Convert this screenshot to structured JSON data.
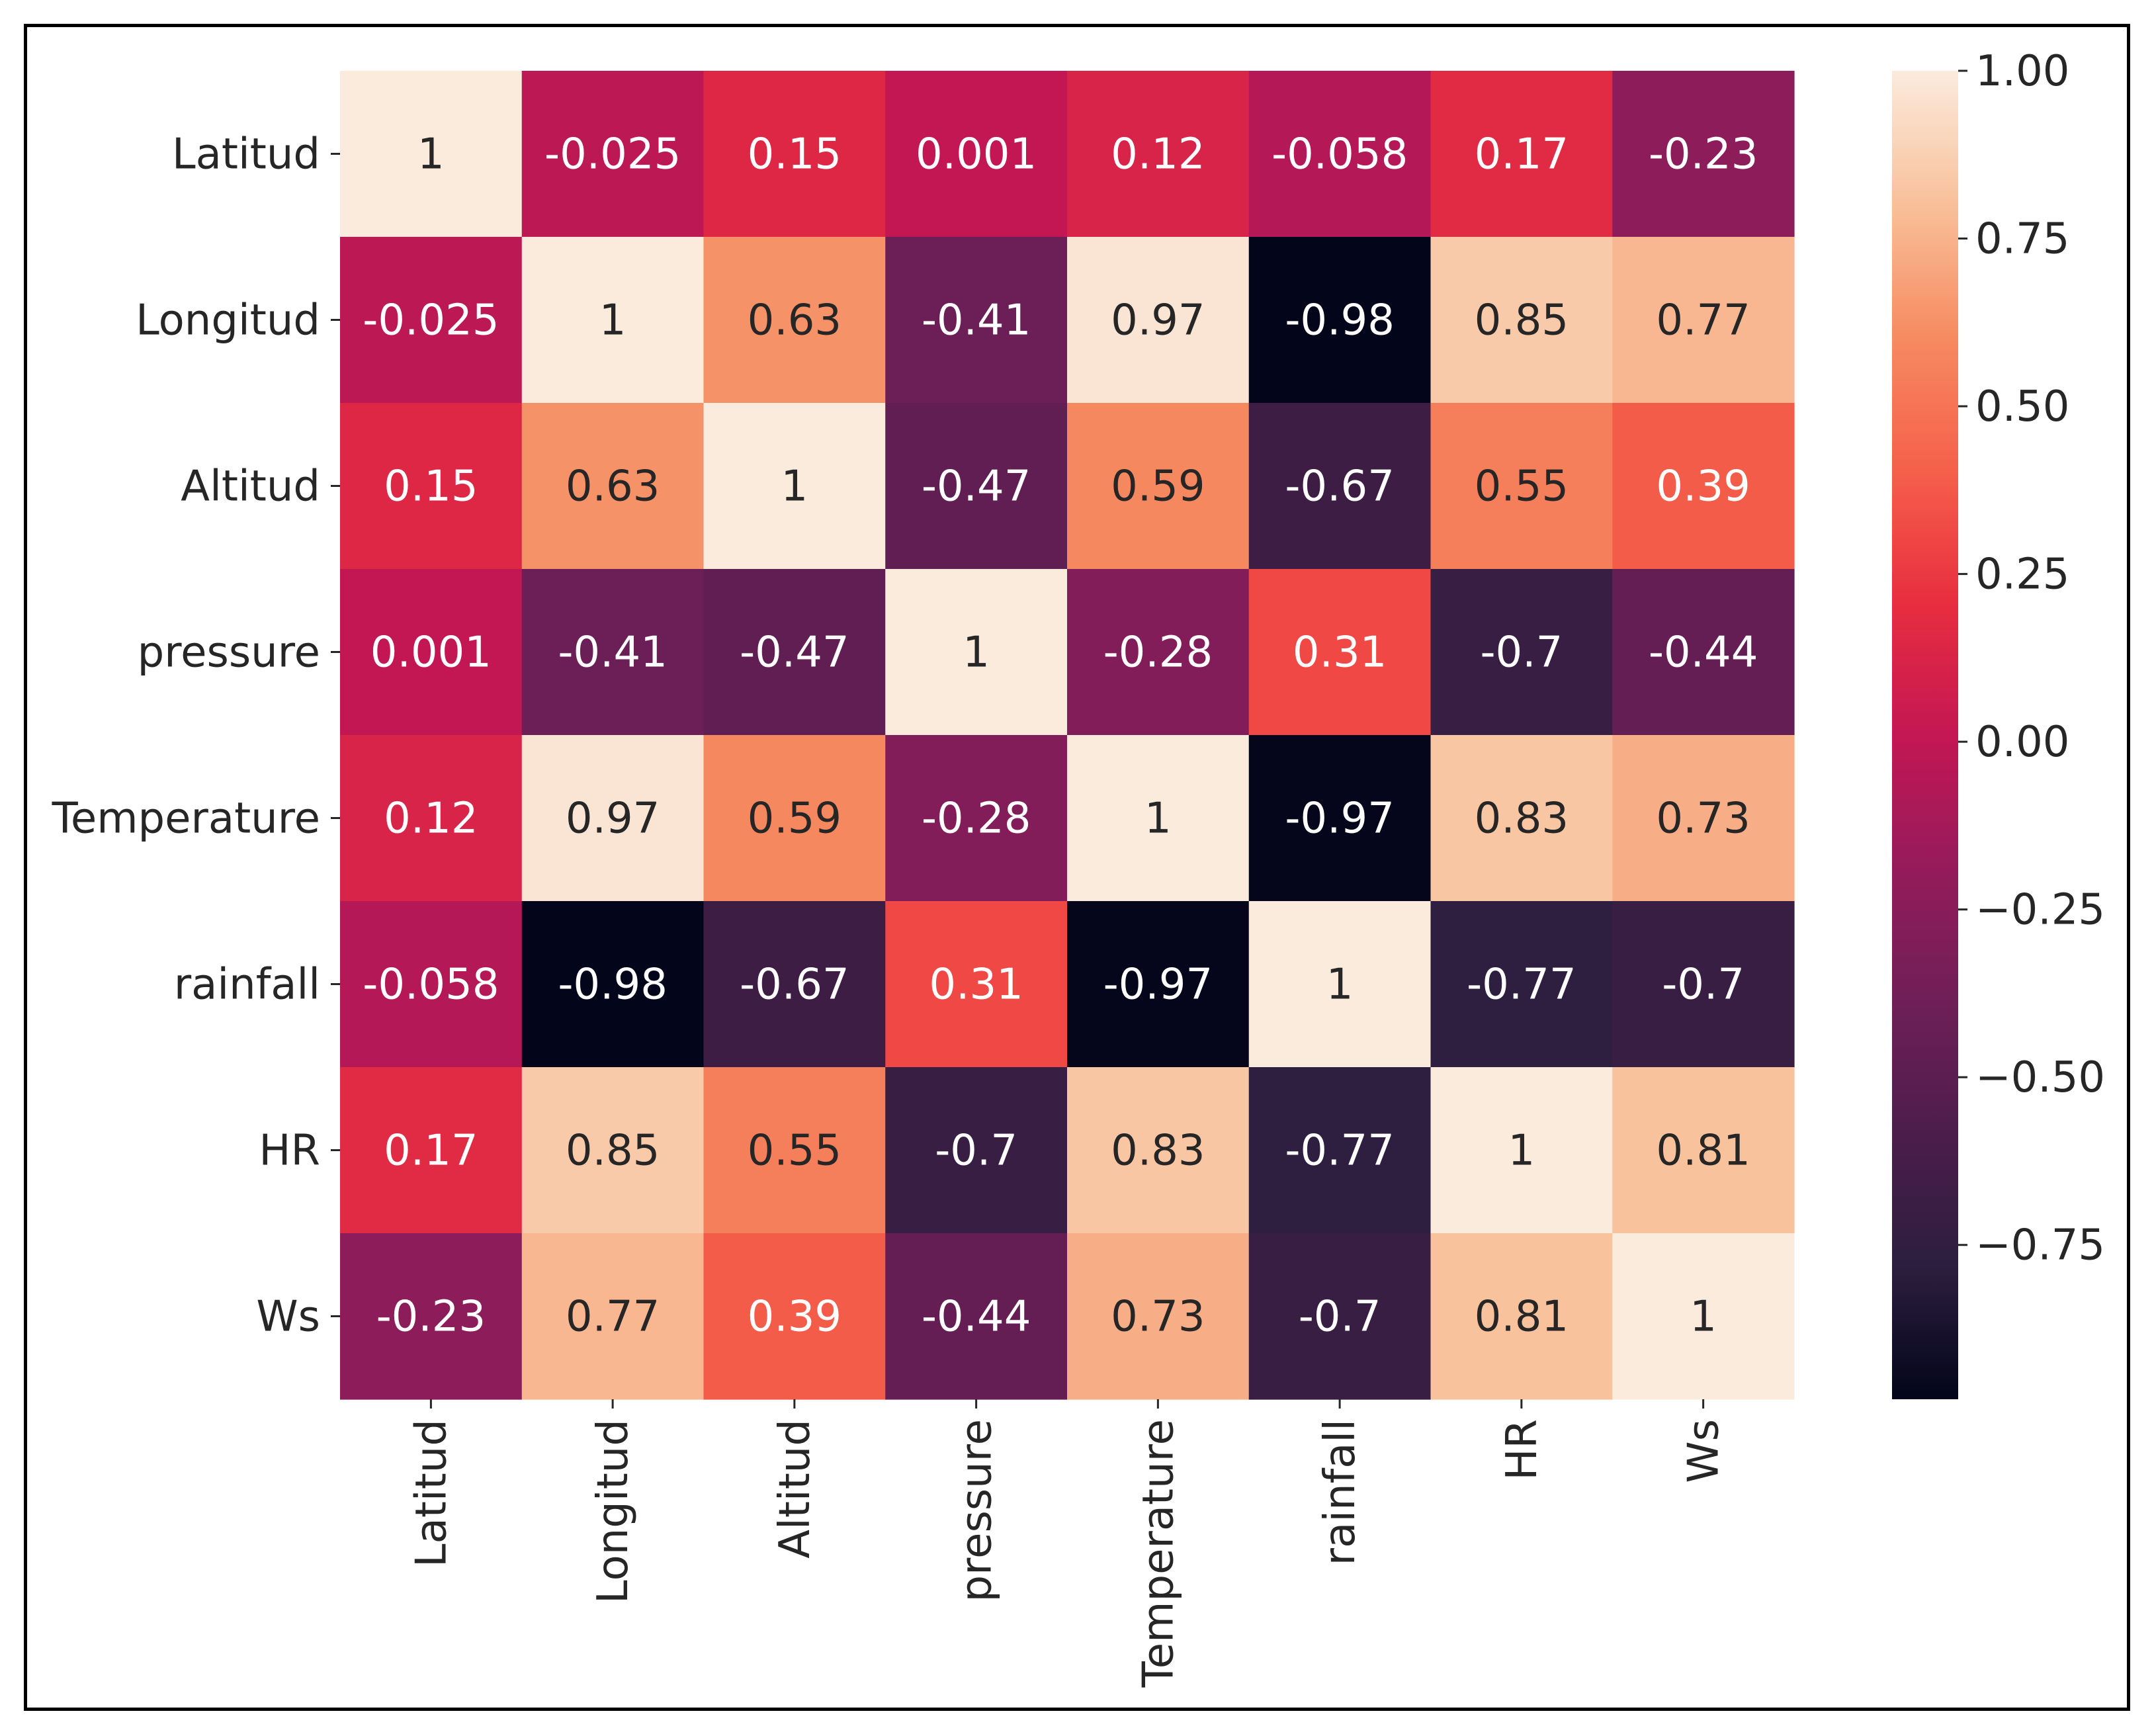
{
  "chart_data": {
    "type": "heatmap",
    "title": "",
    "xlabel": "",
    "ylabel": "",
    "row_labels": [
      "Latitud",
      "Longitud",
      "Altitud",
      "pressure",
      "Temperature",
      "rainfall",
      "HR",
      "Ws"
    ],
    "col_labels": [
      "Latitud",
      "Longitud",
      "Altitud",
      "pressure",
      "Temperature",
      "rainfall",
      "HR",
      "Ws"
    ],
    "values": [
      [
        1,
        -0.025,
        0.15,
        0.001,
        0.12,
        -0.058,
        0.17,
        -0.23
      ],
      [
        -0.025,
        1,
        0.63,
        -0.41,
        0.97,
        -0.98,
        0.85,
        0.77
      ],
      [
        0.15,
        0.63,
        1,
        -0.47,
        0.59,
        -0.67,
        0.55,
        0.39
      ],
      [
        0.001,
        -0.41,
        -0.47,
        1,
        -0.28,
        0.31,
        -0.7,
        -0.44
      ],
      [
        0.12,
        0.97,
        0.59,
        -0.28,
        1,
        -0.97,
        0.83,
        0.73
      ],
      [
        -0.058,
        -0.98,
        -0.67,
        0.31,
        -0.97,
        1,
        -0.77,
        -0.7
      ],
      [
        0.17,
        0.85,
        0.55,
        -0.7,
        0.83,
        -0.77,
        1,
        0.81
      ],
      [
        -0.23,
        0.77,
        0.39,
        -0.44,
        0.73,
        -0.7,
        0.81,
        1
      ]
    ],
    "cell_labels": [
      [
        "1",
        "-0.025",
        "0.15",
        "0.001",
        "0.12",
        "-0.058",
        "0.17",
        "-0.23"
      ],
      [
        "-0.025",
        "1",
        "0.63",
        "-0.41",
        "0.97",
        "-0.98",
        "0.85",
        "0.77"
      ],
      [
        "0.15",
        "0.63",
        "1",
        "-0.47",
        "0.59",
        "-0.67",
        "0.55",
        "0.39"
      ],
      [
        "0.001",
        "-0.41",
        "-0.47",
        "1",
        "-0.28",
        "0.31",
        "-0.7",
        "-0.44"
      ],
      [
        "0.12",
        "0.97",
        "0.59",
        "-0.28",
        "1",
        "-0.97",
        "0.83",
        "0.73"
      ],
      [
        "-0.058",
        "-0.98",
        "-0.67",
        "0.31",
        "-0.97",
        "1",
        "-0.77",
        "-0.7"
      ],
      [
        "0.17",
        "0.85",
        "0.55",
        "-0.7",
        "0.83",
        "-0.77",
        "1",
        "0.81"
      ],
      [
        "-0.23",
        "0.77",
        "0.39",
        "-0.44",
        "0.73",
        "-0.7",
        "0.81",
        "1"
      ]
    ],
    "colorbar": {
      "vmin": -0.98,
      "vmax": 1.0,
      "ticks": [
        1.0,
        0.75,
        0.5,
        0.25,
        0.0,
        -0.25,
        -0.5,
        -0.75
      ],
      "tick_labels": [
        "1.00",
        "0.75",
        "0.50",
        "0.25",
        "0.00",
        "−0.25",
        "−0.50",
        "−0.75"
      ]
    },
    "colormap": {
      "name": "rocket",
      "stops": [
        {
          "v": 0.0,
          "color": "#03051a"
        },
        {
          "v": 0.1,
          "color": "#2c1e3e"
        },
        {
          "v": 0.2,
          "color": "#4c1d4b"
        },
        {
          "v": 0.3,
          "color": "#6f1f57"
        },
        {
          "v": 0.4,
          "color": "#951b5b"
        },
        {
          "v": 0.5,
          "color": "#c41753"
        },
        {
          "v": 0.6,
          "color": "#e82e3f"
        },
        {
          "v": 0.7,
          "color": "#f5604b"
        },
        {
          "v": 0.8,
          "color": "#f68b61"
        },
        {
          "v": 0.9,
          "color": "#f8c09a"
        },
        {
          "v": 1.0,
          "color": "#faebdd"
        }
      ]
    }
  }
}
